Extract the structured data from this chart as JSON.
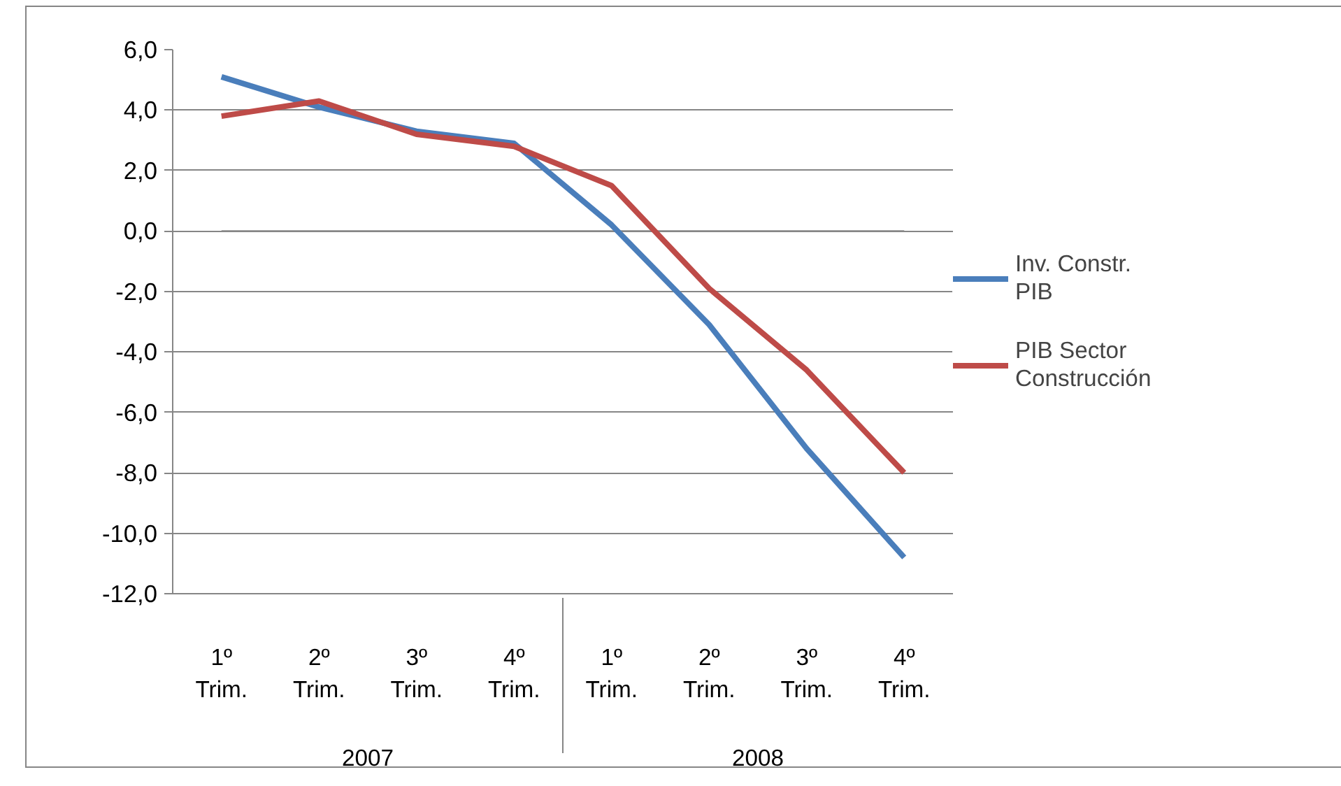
{
  "chart_data": {
    "type": "line",
    "categories": [
      "1º Trim.",
      "2º Trim.",
      "3º Trim.",
      "4º Trim.",
      "1º Trim.",
      "2º Trim.",
      "3º Trim.",
      "4º Trim."
    ],
    "annotations": [
      "2007",
      "2008"
    ],
    "series": [
      {
        "name": "Inv. Constr. PIB",
        "color": "#4a7ebb",
        "values": [
          5.1,
          4.1,
          3.3,
          2.9,
          0.2,
          -3.1,
          -7.2,
          -10.8
        ]
      },
      {
        "name": "PIB Sector Construcción",
        "color": "#be4b48",
        "values": [
          3.8,
          4.3,
          3.2,
          2.8,
          1.5,
          -1.9,
          -4.6,
          -8.0
        ]
      }
    ],
    "ylim": [
      -12,
      6
    ],
    "yticks": [
      {
        "value": -12,
        "label": "-12,0"
      },
      {
        "value": -10,
        "label": "-10,0"
      },
      {
        "value": -8,
        "label": "-8,0"
      },
      {
        "value": -6,
        "label": "-6,0"
      },
      {
        "value": -4,
        "label": "-4,0"
      },
      {
        "value": -2,
        "label": "-2,0"
      },
      {
        "value": 0,
        "label": "0,0"
      },
      {
        "value": 2,
        "label": "2,0"
      },
      {
        "value": 4,
        "label": "4,0"
      },
      {
        "value": 6,
        "label": "6,0"
      }
    ],
    "grid": "y",
    "legend": "right",
    "marker": "none",
    "line_style": "solid"
  }
}
